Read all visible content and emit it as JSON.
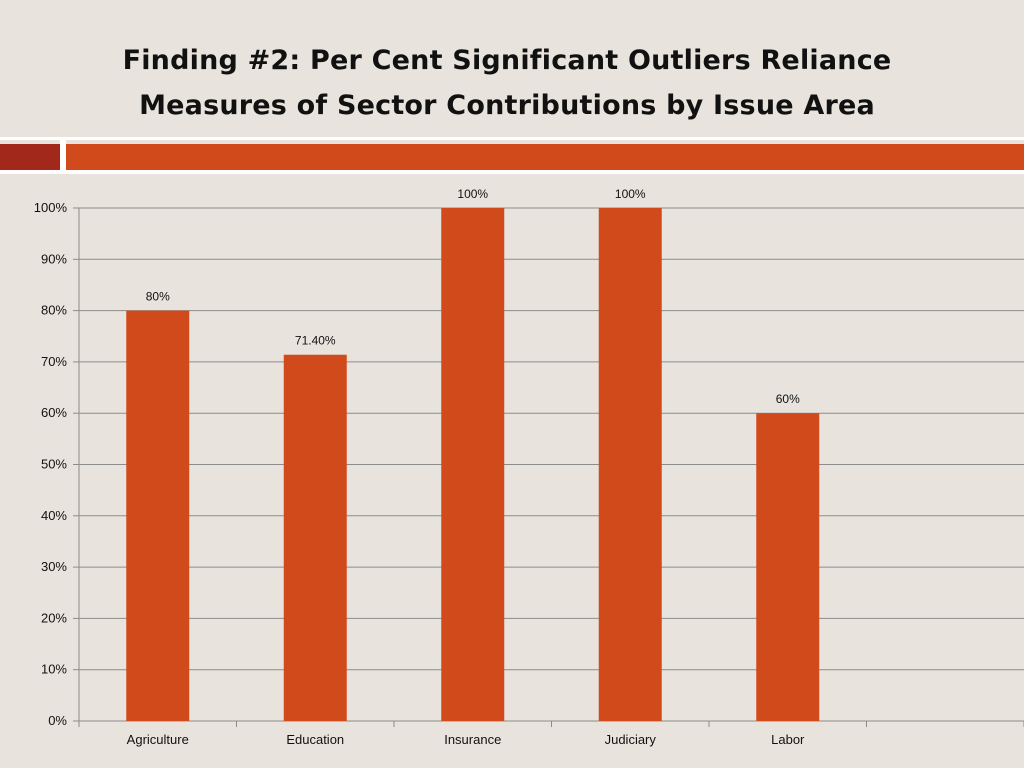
{
  "slide": {
    "title_line1": "Finding #2:  Per Cent Significant Outliers Reliance",
    "title_line2": "Measures of Sector Contributions by Issue Area"
  },
  "colors": {
    "background": "#e8e4dd",
    "bar": "#d14a1c",
    "accent_dark": "#a3281c",
    "accent": "#d14a1c",
    "gridline": "#8c8c8c"
  },
  "chart_data": {
    "type": "bar",
    "title": "",
    "xlabel": "",
    "ylabel": "",
    "categories": [
      "Agriculture",
      "Education",
      "Insurance",
      "Judiciary",
      "Labor",
      ""
    ],
    "values": [
      80,
      71.4,
      100,
      100,
      60,
      null
    ],
    "data_labels": [
      "80%",
      "71.40%",
      "100%",
      "100%",
      "60%",
      ""
    ],
    "ylim": [
      0,
      100
    ],
    "yticks": [
      0,
      10,
      20,
      30,
      40,
      50,
      60,
      70,
      80,
      90,
      100
    ],
    "ytick_labels": [
      "0%",
      "10%",
      "20%",
      "30%",
      "40%",
      "50%",
      "60%",
      "70%",
      "80%",
      "90%",
      "100%"
    ],
    "grid": true,
    "legend": "none"
  }
}
